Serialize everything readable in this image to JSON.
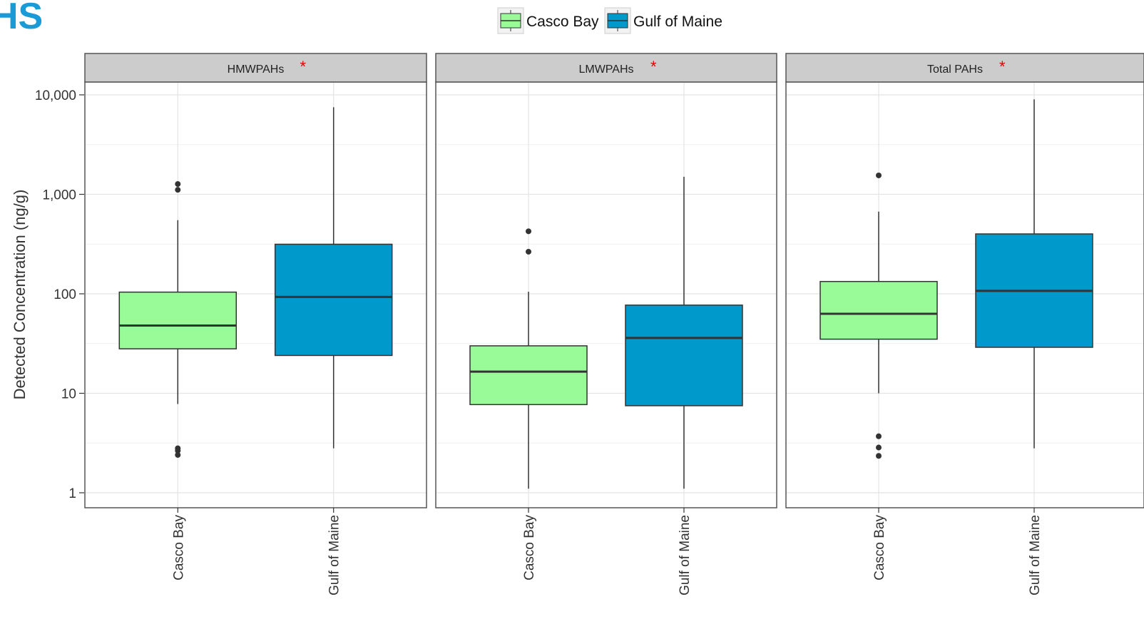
{
  "heading": "HS",
  "chart_data": {
    "type": "boxplot",
    "ylabel": "Detected Concentration (ng/g)",
    "y_scale": "log10",
    "ylim": [
      0.75,
      20000
    ],
    "y_ticks": [
      1,
      10,
      100,
      1000,
      10000
    ],
    "y_tick_labels": [
      "1",
      "10",
      "100",
      "1,000",
      "10,000"
    ],
    "grid": true,
    "legend": {
      "position": "top",
      "entries": [
        {
          "name": "Casco Bay",
          "color": "#98fb98"
        },
        {
          "name": "Gulf of Maine",
          "color": "#0099cc"
        }
      ]
    },
    "categories": [
      "Casco Bay",
      "Gulf of Maine"
    ],
    "significance_marker": "*",
    "panels": [
      {
        "title": "HMWPAHs",
        "boxes": [
          {
            "group": "Casco Bay",
            "whisker_low": 7.8,
            "q1": 28,
            "median": 48,
            "q3": 104,
            "whisker_high": 550,
            "outliers": [
              1270,
              1110,
              2.8,
              2.65,
              2.4
            ]
          },
          {
            "group": "Gulf of Maine",
            "whisker_low": 2.8,
            "q1": 24,
            "median": 93,
            "q3": 315,
            "whisker_high": 7500,
            "outliers": []
          }
        ]
      },
      {
        "title": "LMWPAHs",
        "boxes": [
          {
            "group": "Casco Bay",
            "whisker_low": 1.1,
            "q1": 7.7,
            "median": 16.5,
            "q3": 30,
            "whisker_high": 105,
            "outliers": [
              425,
              265
            ]
          },
          {
            "group": "Gulf of Maine",
            "whisker_low": 1.1,
            "q1": 7.5,
            "median": 36,
            "q3": 77,
            "whisker_high": 1500,
            "outliers": []
          }
        ]
      },
      {
        "title": "Total PAHs",
        "boxes": [
          {
            "group": "Casco Bay",
            "whisker_low": 10,
            "q1": 35,
            "median": 63,
            "q3": 133,
            "whisker_high": 670,
            "outliers": [
              1550,
              3.7,
              2.85,
              2.35
            ]
          },
          {
            "group": "Gulf of Maine",
            "whisker_low": 2.8,
            "q1": 29,
            "median": 107,
            "q3": 400,
            "whisker_high": 9000,
            "outliers": []
          }
        ]
      }
    ]
  }
}
